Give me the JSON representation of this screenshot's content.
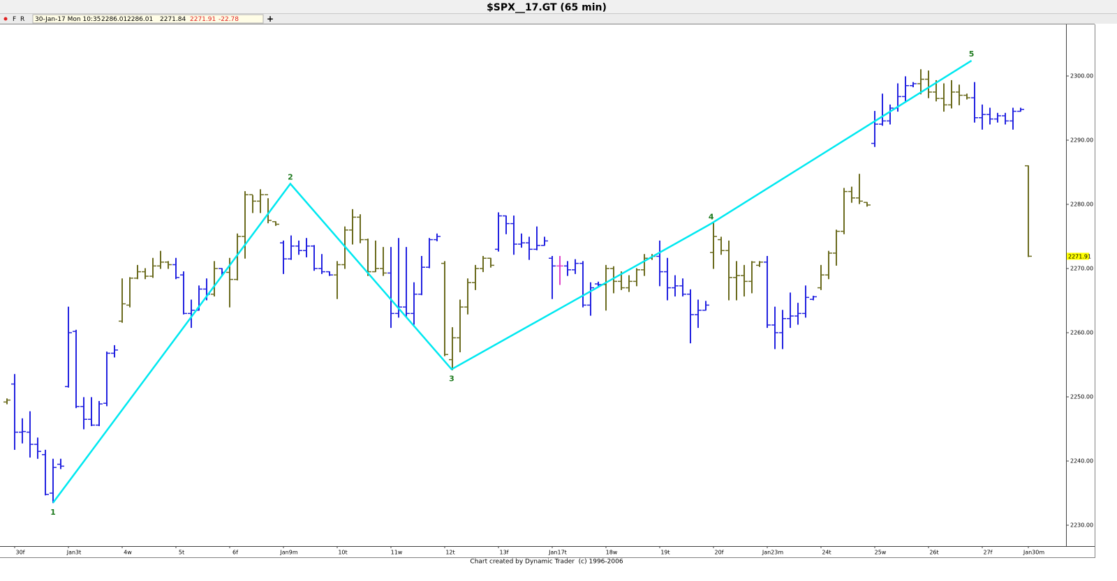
{
  "chart_data": {
    "type": "ohlc",
    "title": "$SPX__17.GT (65 min)",
    "footer": "Chart created by Dynamic Trader  (c) 1996-2006",
    "header": {
      "flags": [
        "F",
        "R"
      ],
      "datetime": "30-Jan-17 Mon 10:35",
      "add": "+"
    },
    "change": -22.78,
    "categories": [
      null,
      "30f",
      null,
      null,
      null,
      null,
      null,
      null,
      "Jan3t",
      null,
      null,
      null,
      null,
      null,
      null,
      "4w",
      null,
      null,
      null,
      null,
      null,
      null,
      "5t",
      null,
      null,
      null,
      null,
      null,
      null,
      "6f",
      null,
      null,
      null,
      null,
      null,
      null,
      "Jan9m",
      null,
      null,
      null,
      null,
      null,
      null,
      "10t",
      null,
      null,
      null,
      null,
      null,
      null,
      "11w",
      null,
      null,
      null,
      null,
      null,
      null,
      "12t",
      null,
      null,
      null,
      null,
      null,
      null,
      "13f",
      null,
      null,
      null,
      null,
      null,
      null,
      "Jan17t",
      null,
      null,
      null,
      null,
      null,
      null,
      "18w",
      null,
      null,
      null,
      null,
      null,
      null,
      "19t",
      null,
      null,
      null,
      null,
      null,
      null,
      "20f",
      null,
      null,
      null,
      null,
      null,
      null,
      "Jan23m",
      null,
      null,
      null,
      null,
      null,
      null,
      "24t",
      null,
      null,
      null,
      null,
      null,
      null,
      "25w",
      null,
      null,
      null,
      null,
      null,
      null,
      "26t",
      null,
      null,
      null,
      null,
      null,
      null,
      "27f",
      null,
      null,
      null,
      null,
      null,
      "Jan30m"
    ],
    "open": [
      2249.2,
      2252,
      2244.5,
      2244.5,
      2242.6,
      2241,
      2235,
      2239.5,
      2251.6,
      2260.2,
      2248.5,
      2246.5,
      2245.6,
      2249,
      2256.8,
      2261.8,
      2264.3,
      2268.5,
      2269.5,
      2268.8,
      2270.4,
      2271,
      2270.6,
      2269,
      2263,
      2263.5,
      2266.8,
      2266,
      2270,
      2269.4,
      2268.3,
      2275,
      2281.5,
      2280.5,
      2281.5,
      2277.3,
      2274,
      2271.5,
      2273.5,
      2272.8,
      2273.5,
      2270,
      2269.5,
      2269,
      2270.6,
      2276,
      2278,
      2274.5,
      2269.5,
      2270,
      2269.3,
      2263,
      2264,
      2263,
      2266,
      2270.2,
      2274.5,
      2270.8,
      2255.8,
      2259.2,
      2264,
      2267.8,
      2270,
      2271.6,
      2273,
      2278.2,
      2277,
      2273.8,
      2274,
      2273,
      2273.6,
      2271.6,
      2270.4,
      2270.4,
      2269.8,
      2270.8,
      2264.3,
      2267.6,
      2267.5,
      2270,
      2268,
      2267,
      2268,
      2269.8,
      2271.6,
      2271.9,
      2269.5,
      2267,
      2267.3,
      2266,
      2262.8,
      2263.5,
      2272.5,
      2274.5,
      2272.8,
      2268.6,
      2268.9,
      2268,
      2270.5,
      2271,
      2261.2,
      2260,
      2262.2,
      2262.6,
      2263,
      2265.2,
      2267,
      2269,
      2272.4,
      2275.8,
      2282,
      2281,
      2280.3,
      2289.5,
      2292.5,
      2293,
      2295,
      2296.8,
      2298.5,
      2298.8,
      2299.5,
      2297.5,
      2296.5,
      2295.5,
      2297.5,
      2297,
      2296.6,
      2293.5,
      2294,
      2293.3,
      2293.8,
      2293,
      2294.5,
      2286.01
    ],
    "high": [
      2249.7,
      2253.5,
      2246.6,
      2247.7,
      2243.6,
      2241.7,
      2240.3,
      2240.3,
      2264,
      2260.4,
      2249.9,
      2249.9,
      2249.3,
      2257,
      2258,
      2268.4,
      2268.6,
      2270.5,
      2270,
      2271.6,
      2272.7,
      2271.1,
      2271.6,
      2269.5,
      2265.1,
      2267.3,
      2268.4,
      2271.1,
      2270,
      2271.6,
      2275.4,
      2282,
      2281.4,
      2282.3,
      2280.9,
      2277.3,
      2274.3,
      2275.1,
      2274.3,
      2274.7,
      2273.6,
      2272.2,
      2269.5,
      2271.1,
      2276.5,
      2279.2,
      2278.4,
      2274.6,
      2274.3,
      2273.3,
      2273.3,
      2274.7,
      2273.3,
      2267.8,
      2271.9,
      2274.7,
      2275.4,
      2271.1,
      2260.8,
      2265.1,
      2268.4,
      2270.5,
      2271.9,
      2271.6,
      2278.7,
      2278.2,
      2278.2,
      2275.4,
      2274.9,
      2276.5,
      2274.9,
      2271.9,
      2271.9,
      2271.1,
      2271.4,
      2271.1,
      2267.8,
      2267.9,
      2270.5,
      2270.3,
      2269.5,
      2268.9,
      2270,
      2272.2,
      2272.2,
      2274.3,
      2271.6,
      2268.9,
      2268.4,
      2266.7,
      2265.1,
      2264.9,
      2277.1,
      2274.9,
      2274.3,
      2271.1,
      2270.5,
      2271.1,
      2271.1,
      2271.9,
      2264,
      2263.5,
      2266.2,
      2264.6,
      2267.3,
      2265.7,
      2270.5,
      2272.7,
      2276,
      2282.5,
      2282.7,
      2284.7,
      2280.3,
      2294.5,
      2297.2,
      2295.5,
      2298.8,
      2299.9,
      2299,
      2301,
      2300.8,
      2299.3,
      2298.8,
      2299.3,
      2298.6,
      2297.2,
      2299,
      2295.5,
      2295,
      2294.2,
      2294.2,
      2295,
      2295,
      2286.01
    ],
    "low": [
      2248.9,
      2241.8,
      2242.8,
      2240.6,
      2240.4,
      2234.7,
      2233.5,
      2238.8,
      2251.5,
      2248.3,
      2245,
      2245.5,
      2245.5,
      2248.6,
      2256.2,
      2261.6,
      2264,
      2268.4,
      2268.4,
      2268.6,
      2270,
      2270,
      2268.4,
      2262.9,
      2260.8,
      2263.5,
      2265.1,
      2265.7,
      2268.9,
      2264,
      2268.2,
      2271.6,
      2278.7,
      2278.7,
      2277.1,
      2276.7,
      2269.2,
      2271.4,
      2272.2,
      2271.8,
      2269.7,
      2269.2,
      2268.9,
      2265.3,
      2270,
      2273.8,
      2274,
      2268.9,
      2269.5,
      2268.9,
      2260.8,
      2262.4,
      2262.4,
      2261.3,
      2265.9,
      2270.1,
      2274.3,
      2256.4,
      2254.2,
      2257,
      2262.9,
      2266.7,
      2269.5,
      2270.2,
      2272.7,
      2275.4,
      2272.2,
      2273.3,
      2271.4,
      2272.9,
      2273.6,
      2265.3,
      2267.5,
      2268.9,
      2269.2,
      2264,
      2262.7,
      2267.3,
      2263.5,
      2266.2,
      2266.7,
      2266.4,
      2267.3,
      2268.9,
      2271.4,
      2267.3,
      2265.1,
      2265.7,
      2265.7,
      2258.4,
      2260.8,
      2263.5,
      2270,
      2272.2,
      2265.1,
      2265.1,
      2265.7,
      2266.2,
      2270.3,
      2260.8,
      2257.5,
      2257.5,
      2260.8,
      2261.3,
      2262.4,
      2265.1,
      2266.7,
      2268.4,
      2270.5,
      2275.4,
      2280.3,
      2280.1,
      2279.7,
      2289,
      2292.3,
      2292.5,
      2294.5,
      2296.1,
      2298.3,
      2297.2,
      2296.6,
      2296.1,
      2294.5,
      2295,
      2295.5,
      2296.4,
      2292.8,
      2291.7,
      2292.5,
      2292.8,
      2292.5,
      2291.7,
      2294.5,
      2271.84
    ],
    "close": [
      2249.5,
      2244.5,
      2244.6,
      2242.6,
      2241.5,
      2234.8,
      2239,
      2239.2,
      2260,
      2248.5,
      2246.5,
      2245.6,
      2248.9,
      2256.8,
      2257.3,
      2264.5,
      2268.5,
      2269.5,
      2268.8,
      2270.4,
      2271,
      2270.6,
      2268.6,
      2263,
      2263.5,
      2266.8,
      2266,
      2270,
      2269.4,
      2268.3,
      2275,
      2281.5,
      2280.5,
      2281.5,
      2277.5,
      2276.9,
      2271.5,
      2273.5,
      2272.8,
      2273.5,
      2270,
      2269.5,
      2269,
      2270.6,
      2276,
      2278,
      2274.5,
      2269.5,
      2270,
      2269.3,
      2263,
      2264,
      2263,
      2266,
      2270.2,
      2274.5,
      2275,
      2256.6,
      2259.2,
      2264,
      2267.8,
      2270,
      2271.6,
      2270.5,
      2278.2,
      2277,
      2273.8,
      2274,
      2273,
      2273.6,
      2274.3,
      2270.4,
      2270.4,
      2269.8,
      2270.8,
      2264.3,
      2267,
      2267.5,
      2270,
      2268,
      2267,
      2268,
      2269.8,
      2271.6,
      2271.9,
      2269.5,
      2267,
      2267.3,
      2266,
      2262.8,
      2263.5,
      2264.3,
      2275,
      2272.8,
      2268.6,
      2268.9,
      2268,
      2271,
      2271,
      2261.2,
      2260,
      2262.2,
      2262.6,
      2263,
      2265.5,
      2265.6,
      2269,
      2272.4,
      2275.8,
      2282,
      2281,
      2280.5,
      2279.9,
      2292.5,
      2293,
      2295,
      2296.8,
      2298.5,
      2298.8,
      2299.5,
      2297.5,
      2296.5,
      2295.5,
      2297.5,
      2297,
      2296.6,
      2293.5,
      2294,
      2293.3,
      2293.8,
      2293,
      2294.5,
      2294.8,
      2271.91
    ],
    "bar_colors": [
      "#6b6b1e",
      "#2222e0",
      "#2222e0",
      "#2222e0",
      "#2222e0",
      "#2222e0",
      "#2222e0",
      "#2222e0",
      "#2222e0",
      "#2222e0",
      "#2222e0",
      "#2222e0",
      "#2222e0",
      "#2222e0",
      "#2222e0",
      "#6b6b1e",
      "#6b6b1e",
      "#6b6b1e",
      "#6b6b1e",
      "#6b6b1e",
      "#6b6b1e",
      "#6b6b1e",
      "#2222e0",
      "#2222e0",
      "#2222e0",
      "#2222e0",
      "#2222e0",
      "#6b6b1e",
      "#2222e0",
      "#6b6b1e",
      "#6b6b1e",
      "#6b6b1e",
      "#6b6b1e",
      "#6b6b1e",
      "#6b6b1e",
      "#6b6b1e",
      "#2222e0",
      "#2222e0",
      "#2222e0",
      "#2222e0",
      "#2222e0",
      "#2222e0",
      "#2222e0",
      "#6b6b1e",
      "#6b6b1e",
      "#6b6b1e",
      "#6b6b1e",
      "#6b6b1e",
      "#6b6b1e",
      "#6b6b1e",
      "#2222e0",
      "#2222e0",
      "#2222e0",
      "#2222e0",
      "#2222e0",
      "#2222e0",
      "#2222e0",
      "#6b6b1e",
      "#6b6b1e",
      "#6b6b1e",
      "#6b6b1e",
      "#6b6b1e",
      "#6b6b1e",
      "#6b6b1e",
      "#2222e0",
      "#2222e0",
      "#2222e0",
      "#2222e0",
      "#2222e0",
      "#2222e0",
      "#2222e0",
      "#2222e0",
      "#e040c8",
      "#2222e0",
      "#2222e0",
      "#2222e0",
      "#2222e0",
      "#2222e0",
      "#6b6b1e",
      "#6b6b1e",
      "#6b6b1e",
      "#6b6b1e",
      "#6b6b1e",
      "#6b6b1e",
      "#6b6b1e",
      "#2222e0",
      "#2222e0",
      "#2222e0",
      "#2222e0",
      "#2222e0",
      "#2222e0",
      "#2222e0",
      "#6b6b1e",
      "#6b6b1e",
      "#6b6b1e",
      "#6b6b1e",
      "#6b6b1e",
      "#6b6b1e",
      "#6b6b1e",
      "#2222e0",
      "#2222e0",
      "#2222e0",
      "#2222e0",
      "#2222e0",
      "#2222e0",
      "#2222e0",
      "#6b6b1e",
      "#6b6b1e",
      "#6b6b1e",
      "#6b6b1e",
      "#6b6b1e",
      "#6b6b1e",
      "#6b6b1e",
      "#2222e0",
      "#2222e0",
      "#2222e0",
      "#2222e0",
      "#2222e0",
      "#2222e0",
      "#6b6b1e",
      "#6b6b1e",
      "#6b6b1e",
      "#6b6b1e",
      "#6b6b1e",
      "#6b6b1e",
      "#6b6b1e",
      "#2222e0",
      "#2222e0",
      "#2222e0",
      "#2222e0",
      "#2222e0",
      "#2222e0",
      "#2222e0",
      "#6b6b1e"
    ],
    "ylim": [
      2226.74,
      2308.04
    ],
    "yticks": [
      {
        "value": 2230,
        "label": "2230.00"
      },
      {
        "value": 2240,
        "label": "2240.00"
      },
      {
        "value": 2250,
        "label": "2250.00"
      },
      {
        "value": 2260,
        "label": "2260.00"
      },
      {
        "value": 2270,
        "label": "2270.00"
      },
      {
        "value": 2280,
        "label": "2280.00"
      },
      {
        "value": 2290,
        "label": "2290.00"
      },
      {
        "value": 2300,
        "label": "2300.00"
      }
    ],
    "grid": false,
    "last_price_color": "#ffff00",
    "wave": {
      "x": [
        6,
        36.9,
        57.9,
        91.7,
        125.6
      ],
      "y": [
        2233.5,
        2283.2,
        2254.3,
        2277,
        2302.4
      ],
      "labels": [
        "1",
        "2",
        "3",
        "4",
        "5"
      ],
      "color": "#00e8f0",
      "label_color": "#1e7a1e"
    }
  }
}
